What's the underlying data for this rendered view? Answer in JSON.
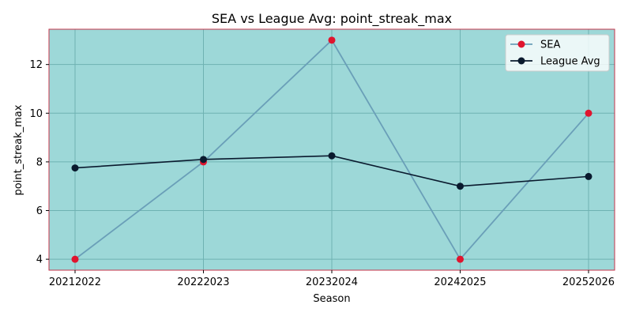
{
  "chart_data": {
    "type": "line",
    "title": "SEA vs League Avg: point_streak_max",
    "xlabel": "Season",
    "ylabel": "point_streak_max",
    "categories": [
      "20212022",
      "20222023",
      "20232024",
      "20242025",
      "20252026"
    ],
    "ylim": [
      3.55,
      13.45
    ],
    "yticks": [
      4,
      6,
      8,
      10,
      12
    ],
    "grid": true,
    "legend_position": "top-right",
    "series": [
      {
        "name": "SEA",
        "values": [
          4,
          8,
          13,
          4,
          10
        ],
        "line_color": "#6a9fb8",
        "marker_color": "#e0142e"
      },
      {
        "name": "League Avg",
        "values": [
          7.75,
          8.1,
          8.25,
          7.0,
          7.4
        ],
        "line_color": "#0a1a2e",
        "marker_color": "#0a1a2e"
      }
    ],
    "colors": {
      "plot_background": "#9dd8d8",
      "plot_border": "#c8334a",
      "grid": "#6fb2b2"
    }
  }
}
